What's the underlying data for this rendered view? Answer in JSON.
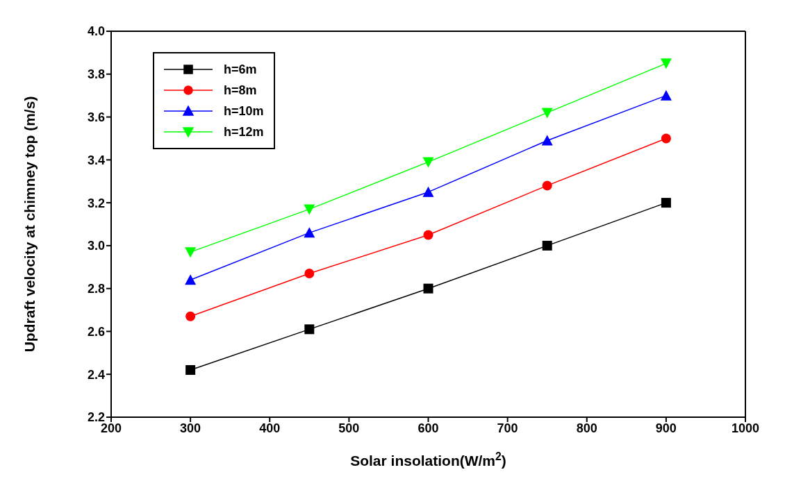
{
  "chart_data": {
    "type": "line",
    "xlabel": "Solar insolation(W/m$^{2}$)",
    "ylabel": "Updraft velocity at chimney top (m/s)",
    "x": [
      300,
      450,
      600,
      750,
      900
    ],
    "series": [
      {
        "name": "h=6m",
        "color": "#000000",
        "marker": "square",
        "values": [
          2.42,
          2.61,
          2.8,
          3.0,
          3.2
        ]
      },
      {
        "name": "h=8m",
        "color": "#ff0000",
        "marker": "circle",
        "values": [
          2.67,
          2.87,
          3.05,
          3.28,
          3.5
        ]
      },
      {
        "name": "h=10m",
        "color": "#0000ff",
        "marker": "triangle",
        "values": [
          2.84,
          3.06,
          3.25,
          3.49,
          3.7
        ]
      },
      {
        "name": "h=12m",
        "color": "#00ff00",
        "marker": "triangle-down",
        "values": [
          2.97,
          3.17,
          3.39,
          3.62,
          3.85
        ]
      }
    ],
    "xlim": [
      200,
      1000
    ],
    "xticks": [
      200,
      300,
      400,
      500,
      600,
      700,
      800,
      900,
      1000
    ],
    "ylim": [
      2.2,
      4.0
    ],
    "yticks": [
      2.2,
      2.4,
      2.6,
      2.8,
      {
        "value": 3.0,
        "label": "3.0"
      },
      3.2,
      3.4,
      3.6,
      3.8,
      {
        "value": 4.0,
        "label": "4.0"
      }
    ],
    "legend": "top left",
    "grid": false,
    "line_style": "solid"
  }
}
